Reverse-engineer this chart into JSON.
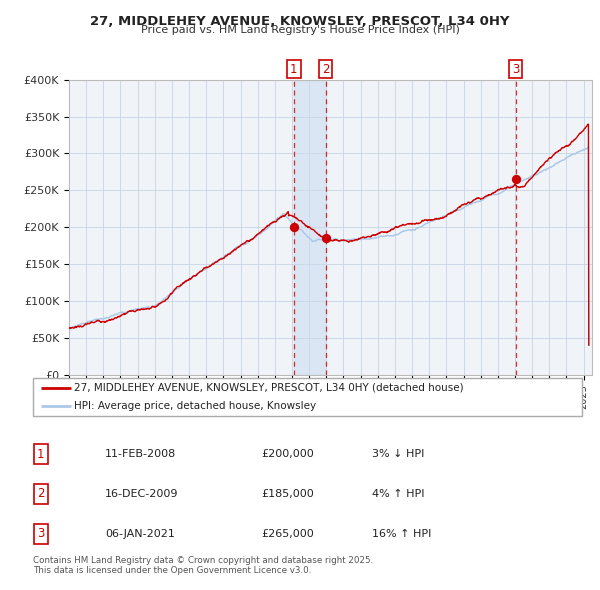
{
  "title": "27, MIDDLEHEY AVENUE, KNOWSLEY, PRESCOT, L34 0HY",
  "subtitle": "Price paid vs. HM Land Registry's House Price Index (HPI)",
  "legend_line1": "27, MIDDLEHEY AVENUE, KNOWSLEY, PRESCOT, L34 0HY (detached house)",
  "legend_line2": "HPI: Average price, detached house, Knowsley",
  "sale_color": "#cc0000",
  "hpi_color": "#aac8e8",
  "ylabel_ticks": [
    "£0",
    "£50K",
    "£100K",
    "£150K",
    "£200K",
    "£250K",
    "£300K",
    "£350K",
    "£400K"
  ],
  "ytick_vals": [
    0,
    50000,
    100000,
    150000,
    200000,
    250000,
    300000,
    350000,
    400000
  ],
  "xmin": 1995,
  "xmax": 2025.5,
  "ymin": 0,
  "ymax": 400000,
  "transactions": [
    {
      "num": 1,
      "date": "11-FEB-2008",
      "price": 200000,
      "pct": "3%",
      "dir": "↓",
      "x": 2008.11
    },
    {
      "num": 2,
      "date": "16-DEC-2009",
      "price": 185000,
      "pct": "4%",
      "dir": "↑",
      "x": 2009.96
    },
    {
      "num": 3,
      "date": "06-JAN-2021",
      "price": 265000,
      "pct": "16%",
      "dir": "↑",
      "x": 2021.04
    }
  ],
  "footnote1": "Contains HM Land Registry data © Crown copyright and database right 2025.",
  "footnote2": "This data is licensed under the Open Government Licence v3.0.",
  "background_color": "#f0f4f8",
  "grid_color": "#c8d4e4",
  "shading_color": "#c8dcf0"
}
